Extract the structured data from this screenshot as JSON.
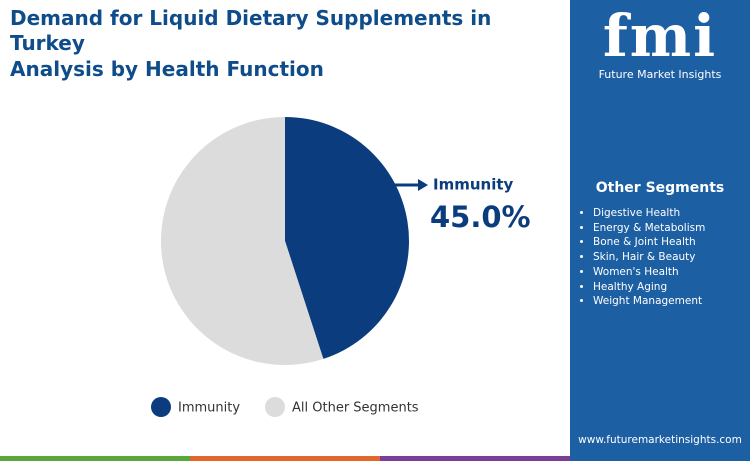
{
  "chart_data": {
    "type": "pie",
    "title": "Demand for Liquid Dietary Supplements in Turkey",
    "subtitle": "Analysis by Health Function",
    "categories": [
      "Immunity",
      "All Other Segments"
    ],
    "values": [
      45.0,
      55.0
    ],
    "value_labels": [
      "45.0%",
      null
    ],
    "colors": [
      "#0b3c7d",
      "#dcdcdc"
    ],
    "legend": "bottom"
  },
  "sidebar": {
    "heading": "Other Segments",
    "items": [
      "Digestive Health",
      "Energy & Metabolism",
      "Bone & Joint Health",
      "Skin, Hair & Beauty",
      "Women's Health",
      "Healthy Aging",
      "Weight Management"
    ]
  },
  "brand": {
    "logo": "fmi",
    "name": "Future Market Insights",
    "website": "www.futuremarketinsights.com"
  }
}
